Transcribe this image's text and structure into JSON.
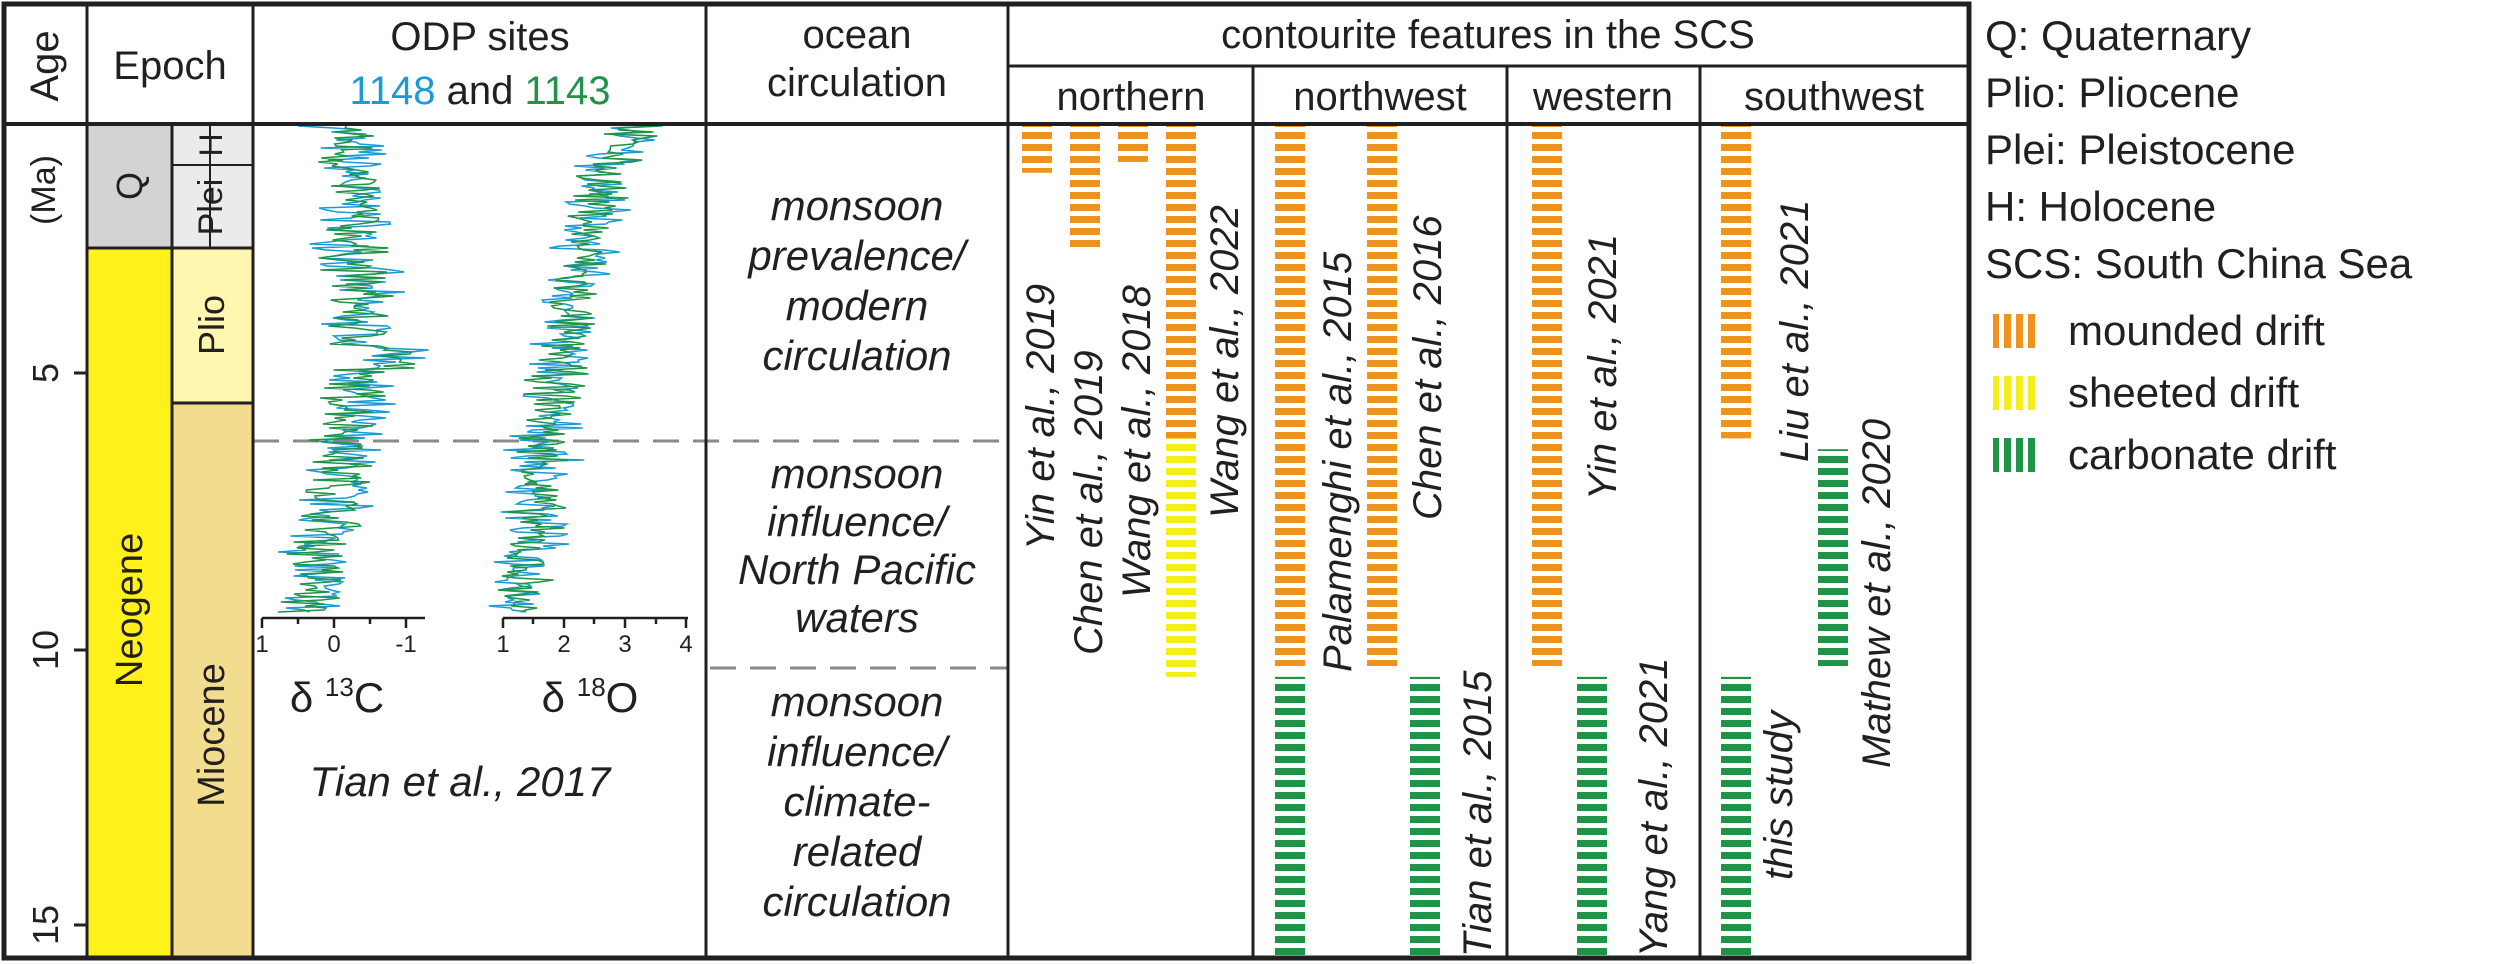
{
  "header": {
    "age": "Age",
    "age_unit": "(Ma)",
    "epoch": "Epoch",
    "odp_title": "ODP sites",
    "odp_site_a": "1148",
    "odp_and": "and",
    "odp_site_b": "1143",
    "ocean_title_1": "ocean",
    "ocean_title_2": "circulation",
    "contourite_title": "contourite features in the SCS",
    "regions": [
      "northern",
      "northwest",
      "western",
      "southwest"
    ]
  },
  "age_axis": {
    "ticks": [
      "5",
      "10",
      "15"
    ],
    "min": 0,
    "max": 15.5
  },
  "epochs": {
    "q": "Q",
    "plei": "Plei",
    "h": "H",
    "plio": "Plio",
    "neogene": "Neogene",
    "miocene": "Miocene"
  },
  "isotopes": {
    "c13_label": "δ",
    "c13_sup": "13",
    "c13_el": "C",
    "o18_label": "δ",
    "o18_sup": "18",
    "o18_el": "O",
    "c13_ticks": [
      "1",
      "0",
      "-1"
    ],
    "o18_ticks": [
      "1",
      "2",
      "3",
      "4"
    ],
    "source": "Tian et al., 2017"
  },
  "circulation": [
    [
      "monsoon",
      "prevalence/",
      "modern",
      "circulation"
    ],
    [
      "monsoon",
      "influence/",
      "North Pacific",
      "waters"
    ],
    [
      "monsoon",
      "influence/",
      "climate-",
      "related",
      "circulation"
    ]
  ],
  "boundaries_ma": [
    5.8,
    10.2
  ],
  "drifts": [
    {
      "region": "northern",
      "top": 0,
      "bottom": 0.9,
      "type": "mounded"
    },
    {
      "region": "northern",
      "top": 0,
      "bottom": 2.3,
      "type": "mounded"
    },
    {
      "region": "northern",
      "top": 0,
      "bottom": 0.7,
      "type": "mounded"
    },
    {
      "region": "northern",
      "top": 0,
      "bottom": 5.8,
      "type": "mounded"
    },
    {
      "region": "northern",
      "top": 5.8,
      "bottom": 10.2,
      "type": "sheeted"
    },
    {
      "region": "northwest",
      "top": 0,
      "bottom": 10.0,
      "type": "mounded"
    },
    {
      "region": "northwest",
      "top": 10.2,
      "bottom": 15.5,
      "type": "carbonate"
    },
    {
      "region": "northwest",
      "top": 0,
      "bottom": 10.0,
      "type": "mounded"
    },
    {
      "region": "northwest",
      "top": 10.2,
      "bottom": 15.5,
      "type": "carbonate"
    },
    {
      "region": "western",
      "top": 0,
      "bottom": 10.0,
      "type": "mounded"
    },
    {
      "region": "western",
      "top": 10.2,
      "bottom": 15.5,
      "type": "carbonate"
    },
    {
      "region": "southwest",
      "top": 0,
      "bottom": 5.8,
      "type": "mounded"
    },
    {
      "region": "southwest",
      "top": 10.2,
      "bottom": 15.5,
      "type": "carbonate"
    },
    {
      "region": "southwest",
      "top": 6.0,
      "bottom": 10.0,
      "type": "carbonate"
    }
  ],
  "citations": [
    "Yin et al., 2019",
    "Chen et al., 2019",
    "Wang et al., 2018",
    "Wang et al., 2022",
    "Palamenghi et al., 2015",
    "Chen et al., 2016",
    "Tian et al., 2015",
    "Yin et al., 2021",
    "Yang et al., 2021",
    "this study",
    "Liu et al., 2021",
    "Mathew et al., 2020"
  ],
  "legend": {
    "abbrev": [
      "Q: Quaternary",
      "Plio: Pliocene",
      "Plei: Pleistocene",
      "H: Holocene",
      "SCS: South China Sea"
    ],
    "drift_types": [
      {
        "label": "mounded drift",
        "type": "mounded"
      },
      {
        "label": "sheeted drift",
        "type": "sheeted"
      },
      {
        "label": "carbonate drift",
        "type": "carbonate"
      }
    ]
  },
  "colors": {
    "mounded": "#f0931e",
    "sheeted": "#f4ee1a",
    "carbonate": "#1f9446",
    "neogene": "#fff21a",
    "quaternary": "#d3d3d3",
    "plei_h": "#ebebeb",
    "pliocene": "#fff6b0",
    "miocene": "#f2dd8f",
    "site_1148": "#1a9ad6",
    "site_1143": "#1f9446",
    "dash": "#8a8a8a"
  }
}
